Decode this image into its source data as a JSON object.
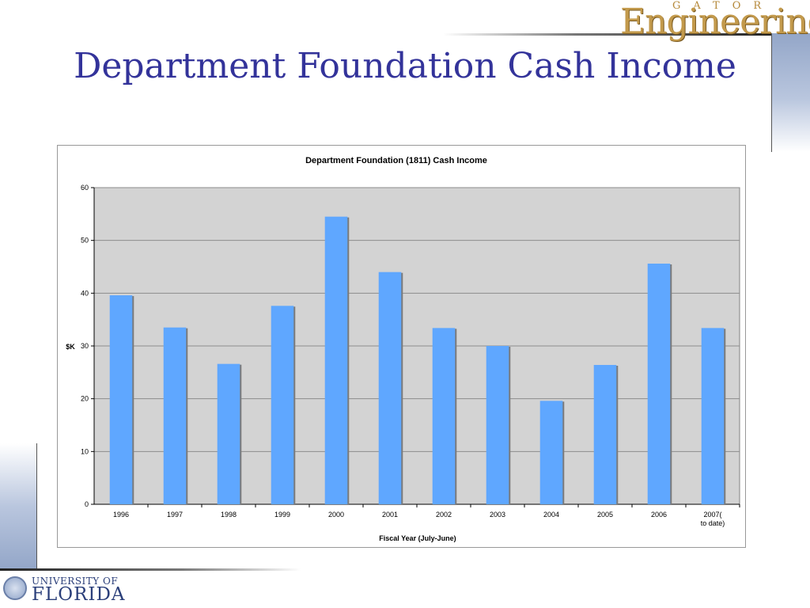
{
  "slide": {
    "title": "Department Foundation Cash Income"
  },
  "branding": {
    "logo_small": "GATOR",
    "logo_big": "Engineering",
    "university_small": "UNIVERSITY OF",
    "university_big": "FLORIDA"
  },
  "colors": {
    "title": "#33339a",
    "bar": "#5fa7ff",
    "plot_bg": "#d3d3d3"
  },
  "chart_data": {
    "type": "bar",
    "title": "Department Foundation (1811) Cash Income",
    "xlabel": "Fiscal Year (July-June)",
    "ylabel": "$K",
    "categories": [
      "1996",
      "1997",
      "1998",
      "1999",
      "2000",
      "2001",
      "2002",
      "2003",
      "2004",
      "2005",
      "2006",
      "2007(to date)"
    ],
    "values": [
      39.6,
      33.5,
      26.6,
      37.6,
      54.5,
      44,
      33.4,
      30,
      19.6,
      26.4,
      45.6,
      33.4
    ],
    "ylim": [
      0,
      60
    ],
    "yticks": [
      0,
      10,
      20,
      30,
      40,
      50,
      60
    ],
    "grid": true,
    "legend": false
  }
}
